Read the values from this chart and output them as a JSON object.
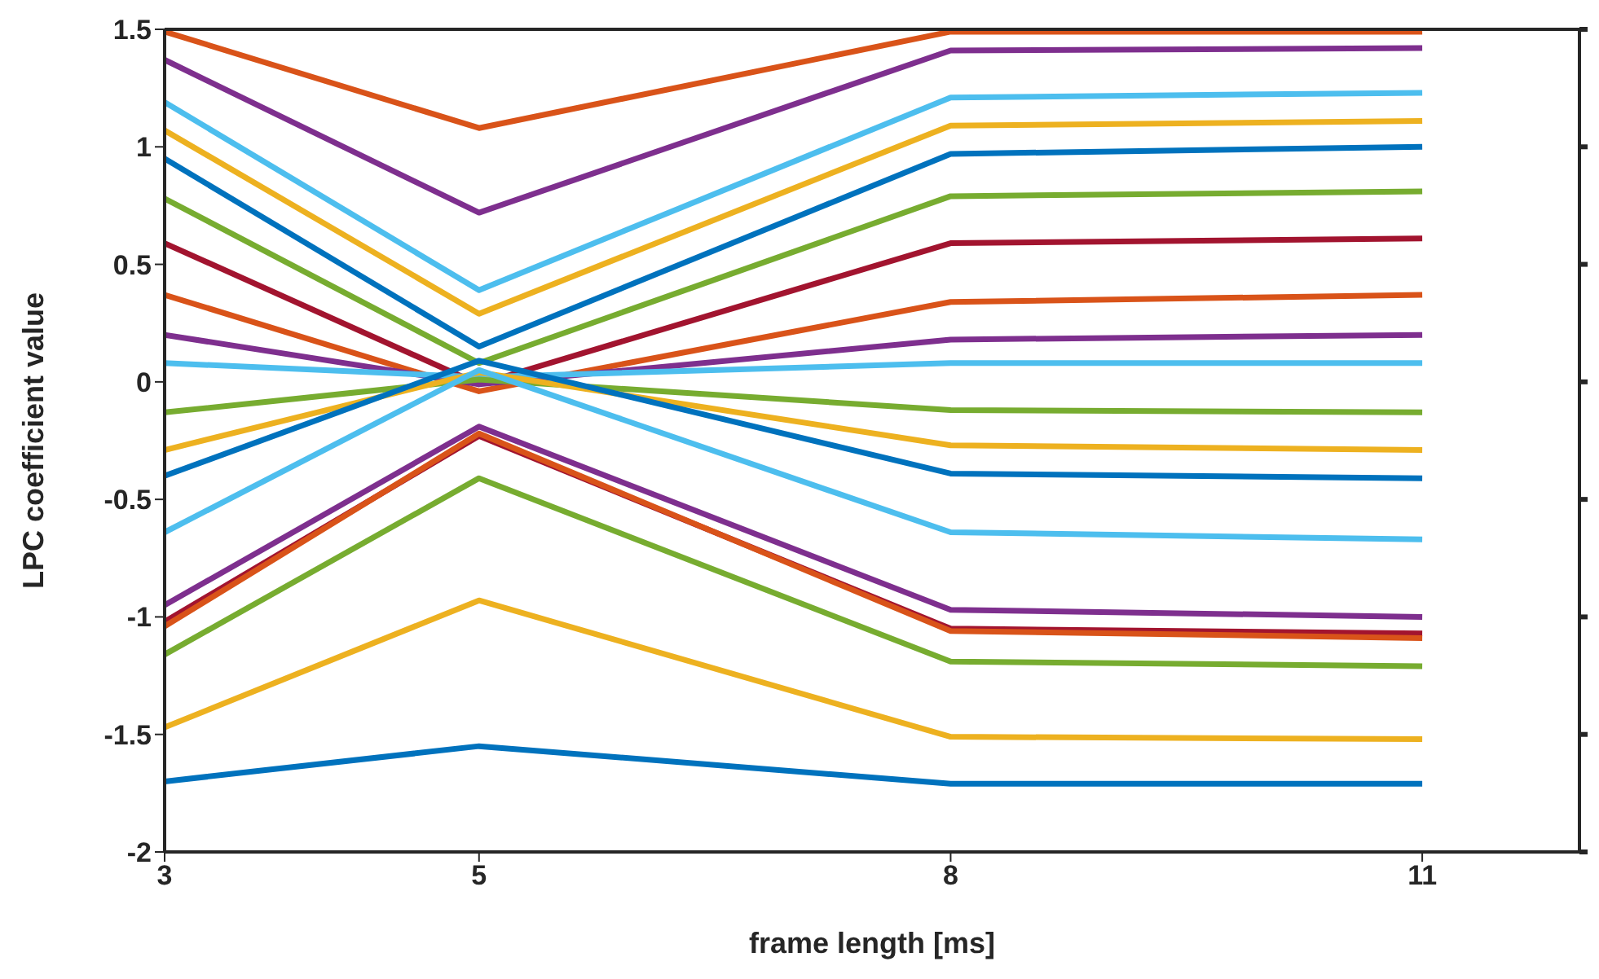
{
  "chart_data": {
    "type": "line",
    "xlabel": "frame length [ms]",
    "ylabel": "LPC coefficient value",
    "x": [
      3,
      5,
      8,
      11
    ],
    "xlim": [
      3,
      12
    ],
    "xticks": [
      3,
      5,
      8,
      11
    ],
    "ylim": [
      -2,
      1.5
    ],
    "yticks": [
      -2,
      -1.5,
      -1,
      -0.5,
      0,
      0.5,
      1,
      1.5
    ],
    "grid": false,
    "legend": false,
    "marker": "none",
    "line_style": "solid",
    "series": [
      {
        "color": "#d95319",
        "values": [
          1.49,
          1.08,
          1.49,
          1.49
        ]
      },
      {
        "color": "#7e2f8e",
        "values": [
          1.37,
          0.72,
          1.41,
          1.42
        ]
      },
      {
        "color": "#4dbeee",
        "values": [
          1.19,
          0.39,
          1.21,
          1.23
        ]
      },
      {
        "color": "#edb120",
        "values": [
          1.07,
          0.29,
          1.09,
          1.11
        ]
      },
      {
        "color": "#0072bd",
        "values": [
          0.95,
          0.15,
          0.97,
          1.0
        ]
      },
      {
        "color": "#77ac30",
        "values": [
          0.78,
          0.08,
          0.79,
          0.81
        ]
      },
      {
        "color": "#a2142f",
        "values": [
          0.59,
          -0.01,
          0.59,
          0.61
        ]
      },
      {
        "color": "#d95319",
        "values": [
          0.37,
          -0.04,
          0.34,
          0.37
        ]
      },
      {
        "color": "#7e2f8e",
        "values": [
          0.2,
          -0.01,
          0.18,
          0.2
        ]
      },
      {
        "color": "#4dbeee",
        "values": [
          0.08,
          0.02,
          0.08,
          0.08
        ]
      },
      {
        "color": "#77ac30",
        "values": [
          -0.13,
          0.01,
          -0.12,
          -0.13
        ]
      },
      {
        "color": "#edb120",
        "values": [
          -0.29,
          0.04,
          -0.27,
          -0.29
        ]
      },
      {
        "color": "#0072bd",
        "values": [
          -0.4,
          0.09,
          -0.39,
          -0.41
        ]
      },
      {
        "color": "#4dbeee",
        "values": [
          -0.64,
          0.05,
          -0.64,
          -0.67
        ]
      },
      {
        "color": "#7e2f8e",
        "values": [
          -0.95,
          -0.19,
          -0.97,
          -1.0
        ]
      },
      {
        "color": "#a2142f",
        "values": [
          -1.02,
          -0.23,
          -1.05,
          -1.07
        ]
      },
      {
        "color": "#d95319",
        "values": [
          -1.04,
          -0.22,
          -1.06,
          -1.09
        ]
      },
      {
        "color": "#77ac30",
        "values": [
          -1.16,
          -0.41,
          -1.19,
          -1.21
        ]
      },
      {
        "color": "#edb120",
        "values": [
          -1.47,
          -0.93,
          -1.51,
          -1.52
        ]
      },
      {
        "color": "#0072bd",
        "values": [
          -1.7,
          -1.55,
          -1.71,
          -1.71
        ]
      }
    ]
  }
}
